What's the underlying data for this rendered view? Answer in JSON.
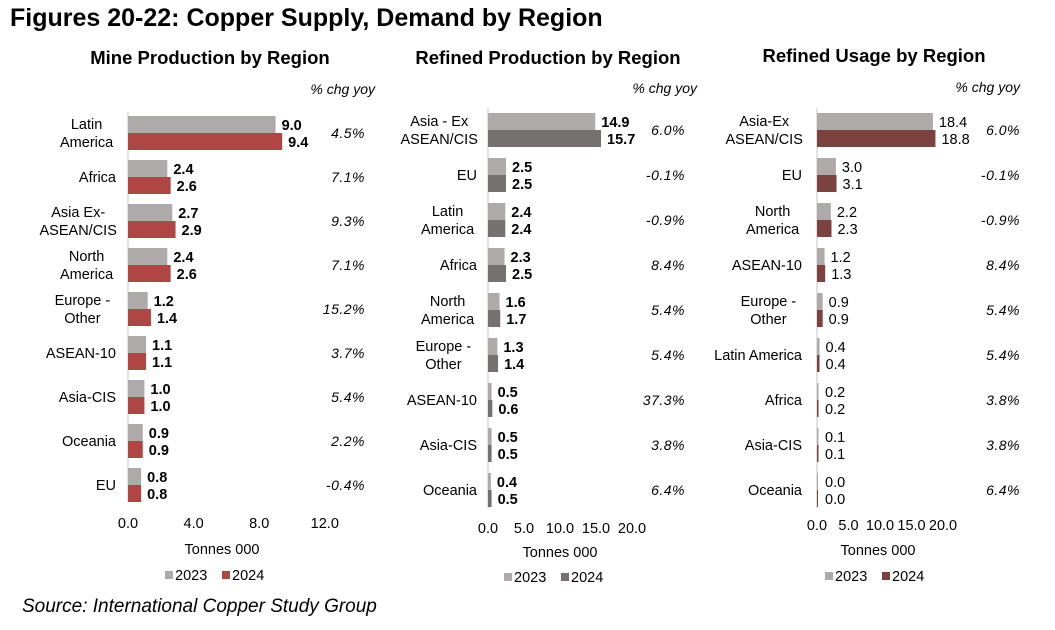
{
  "page": {
    "title": "Figures 20-22: Copper Supply, Demand by Region",
    "source": "Source: International Copper Study Group"
  },
  "chart_data": [
    {
      "type": "bar",
      "orientation": "horizontal",
      "title": "Mine Production by Region",
      "pct_header": "% chg yoy",
      "xlabel": "Tonnes 000",
      "xlim": [
        0,
        12
      ],
      "xticks": [
        "0.0",
        "4.0",
        "8.0",
        "12.0"
      ],
      "xtick_values": [
        0,
        4,
        8,
        12
      ],
      "value_labels_bold": true,
      "colors": {
        "2023": "#aeaaaa",
        "2024": "#b04643"
      },
      "categories": [
        [
          "Latin",
          "America"
        ],
        [
          "Africa"
        ],
        [
          "Asia Ex-",
          "ASEAN/CIS"
        ],
        [
          "North",
          "America"
        ],
        [
          "Europe -",
          "Other"
        ],
        [
          "ASEAN-10"
        ],
        [
          "Asia-CIS"
        ],
        [
          "Oceania"
        ],
        [
          "EU"
        ]
      ],
      "series": [
        {
          "name": "2023",
          "values": [
            9.0,
            2.4,
            2.7,
            2.4,
            1.2,
            1.1,
            1.0,
            0.9,
            0.8
          ],
          "labels": [
            "9.0",
            "2.4",
            "2.7",
            "2.4",
            "1.2",
            "1.1",
            "1.0",
            "0.9",
            "0.8"
          ]
        },
        {
          "name": "2024",
          "values": [
            9.4,
            2.6,
            2.9,
            2.6,
            1.4,
            1.1,
            1.0,
            0.9,
            0.8
          ],
          "labels": [
            "9.4",
            "2.6",
            "2.9",
            "2.6",
            "1.4",
            "1.1",
            "1.0",
            "0.9",
            "0.8"
          ]
        }
      ],
      "pct_change": [
        "4.5%",
        "7.1%",
        "9.3%",
        "7.1%",
        "15.2%",
        "3.7%",
        "5.4%",
        "2.2%",
        "-0.4%"
      ],
      "legend": [
        "2023",
        "2024"
      ],
      "legend_position": "bottom"
    },
    {
      "type": "bar",
      "orientation": "horizontal",
      "title": "Refined Production by Region",
      "pct_header": "% chg yoy",
      "xlabel": "Tonnes 000",
      "xlim": [
        0,
        20
      ],
      "xticks": [
        "0.0",
        "5.0",
        "10.0",
        "15.0",
        "20.0"
      ],
      "xtick_values": [
        0,
        5,
        10,
        15,
        20
      ],
      "value_labels_bold": true,
      "colors": {
        "2023": "#aeaaaa",
        "2024": "#767171"
      },
      "categories": [
        [
          "Asia - Ex",
          "ASEAN/CIS"
        ],
        [
          "EU"
        ],
        [
          "Latin",
          "America"
        ],
        [
          "Africa"
        ],
        [
          "North",
          "America"
        ],
        [
          "Europe -",
          "Other"
        ],
        [
          "ASEAN-10"
        ],
        [
          "Asia-CIS"
        ],
        [
          "Oceania"
        ]
      ],
      "series": [
        {
          "name": "2023",
          "values": [
            14.9,
            2.5,
            2.4,
            2.3,
            1.6,
            1.3,
            0.5,
            0.5,
            0.4
          ],
          "labels": [
            "14.9",
            "2.5",
            "2.4",
            "2.3",
            "1.6",
            "1.3",
            "0.5",
            "0.5",
            "0.4"
          ]
        },
        {
          "name": "2024",
          "values": [
            15.7,
            2.5,
            2.4,
            2.5,
            1.7,
            1.4,
            0.6,
            0.5,
            0.5
          ],
          "labels": [
            "15.7",
            "2.5",
            "2.4",
            "2.5",
            "1.7",
            "1.4",
            "0.6",
            "0.5",
            "0.5"
          ]
        }
      ],
      "pct_change": [
        "6.0%",
        "-0.1%",
        "-0.9%",
        "8.4%",
        "5.4%",
        "5.4%",
        "37.3%",
        "3.8%",
        "6.4%"
      ],
      "legend": [
        "2023",
        "2024"
      ],
      "legend_position": "bottom"
    },
    {
      "type": "bar",
      "orientation": "horizontal",
      "title": "Refined Usage by Region",
      "pct_header": "% chg yoy",
      "xlabel": "Tonnes 000",
      "xlim": [
        0,
        20
      ],
      "xticks": [
        "0.0",
        "5.0",
        "10.0",
        "15.0",
        "20.0"
      ],
      "xtick_values": [
        0,
        5,
        10,
        15,
        20
      ],
      "value_labels_bold": false,
      "colors": {
        "2023": "#aeaaaa",
        "2024": "#7b4240"
      },
      "categories": [
        [
          "Asia-Ex",
          "ASEAN/CIS"
        ],
        [
          "EU"
        ],
        [
          "North",
          "America"
        ],
        [
          "ASEAN-10"
        ],
        [
          "Europe -",
          "Other"
        ],
        [
          "Latin America"
        ],
        [
          "Africa"
        ],
        [
          "Asia-CIS"
        ],
        [
          "Oceania"
        ]
      ],
      "series": [
        {
          "name": "2023",
          "values": [
            18.4,
            3.0,
            2.2,
            1.2,
            0.9,
            0.4,
            0.2,
            0.1,
            0.0
          ],
          "labels": [
            "18.4",
            "3.0",
            "2.2",
            "1.2",
            "0.9",
            "0.4",
            "0.2",
            "0.1",
            "0.0"
          ]
        },
        {
          "name": "2024",
          "values": [
            18.8,
            3.1,
            2.3,
            1.3,
            0.9,
            0.4,
            0.2,
            0.1,
            0.0
          ],
          "labels": [
            "18.8",
            "3.1",
            "2.3",
            "1.3",
            "0.9",
            "0.4",
            "0.2",
            "0.1",
            "0.0"
          ]
        }
      ],
      "pct_change": [
        "6.0%",
        "-0.1%",
        "-0.9%",
        "8.4%",
        "5.4%",
        "5.4%",
        "3.8%",
        "3.8%",
        "6.4%"
      ],
      "legend": [
        "2023",
        "2024"
      ],
      "legend_position": "bottom"
    }
  ]
}
